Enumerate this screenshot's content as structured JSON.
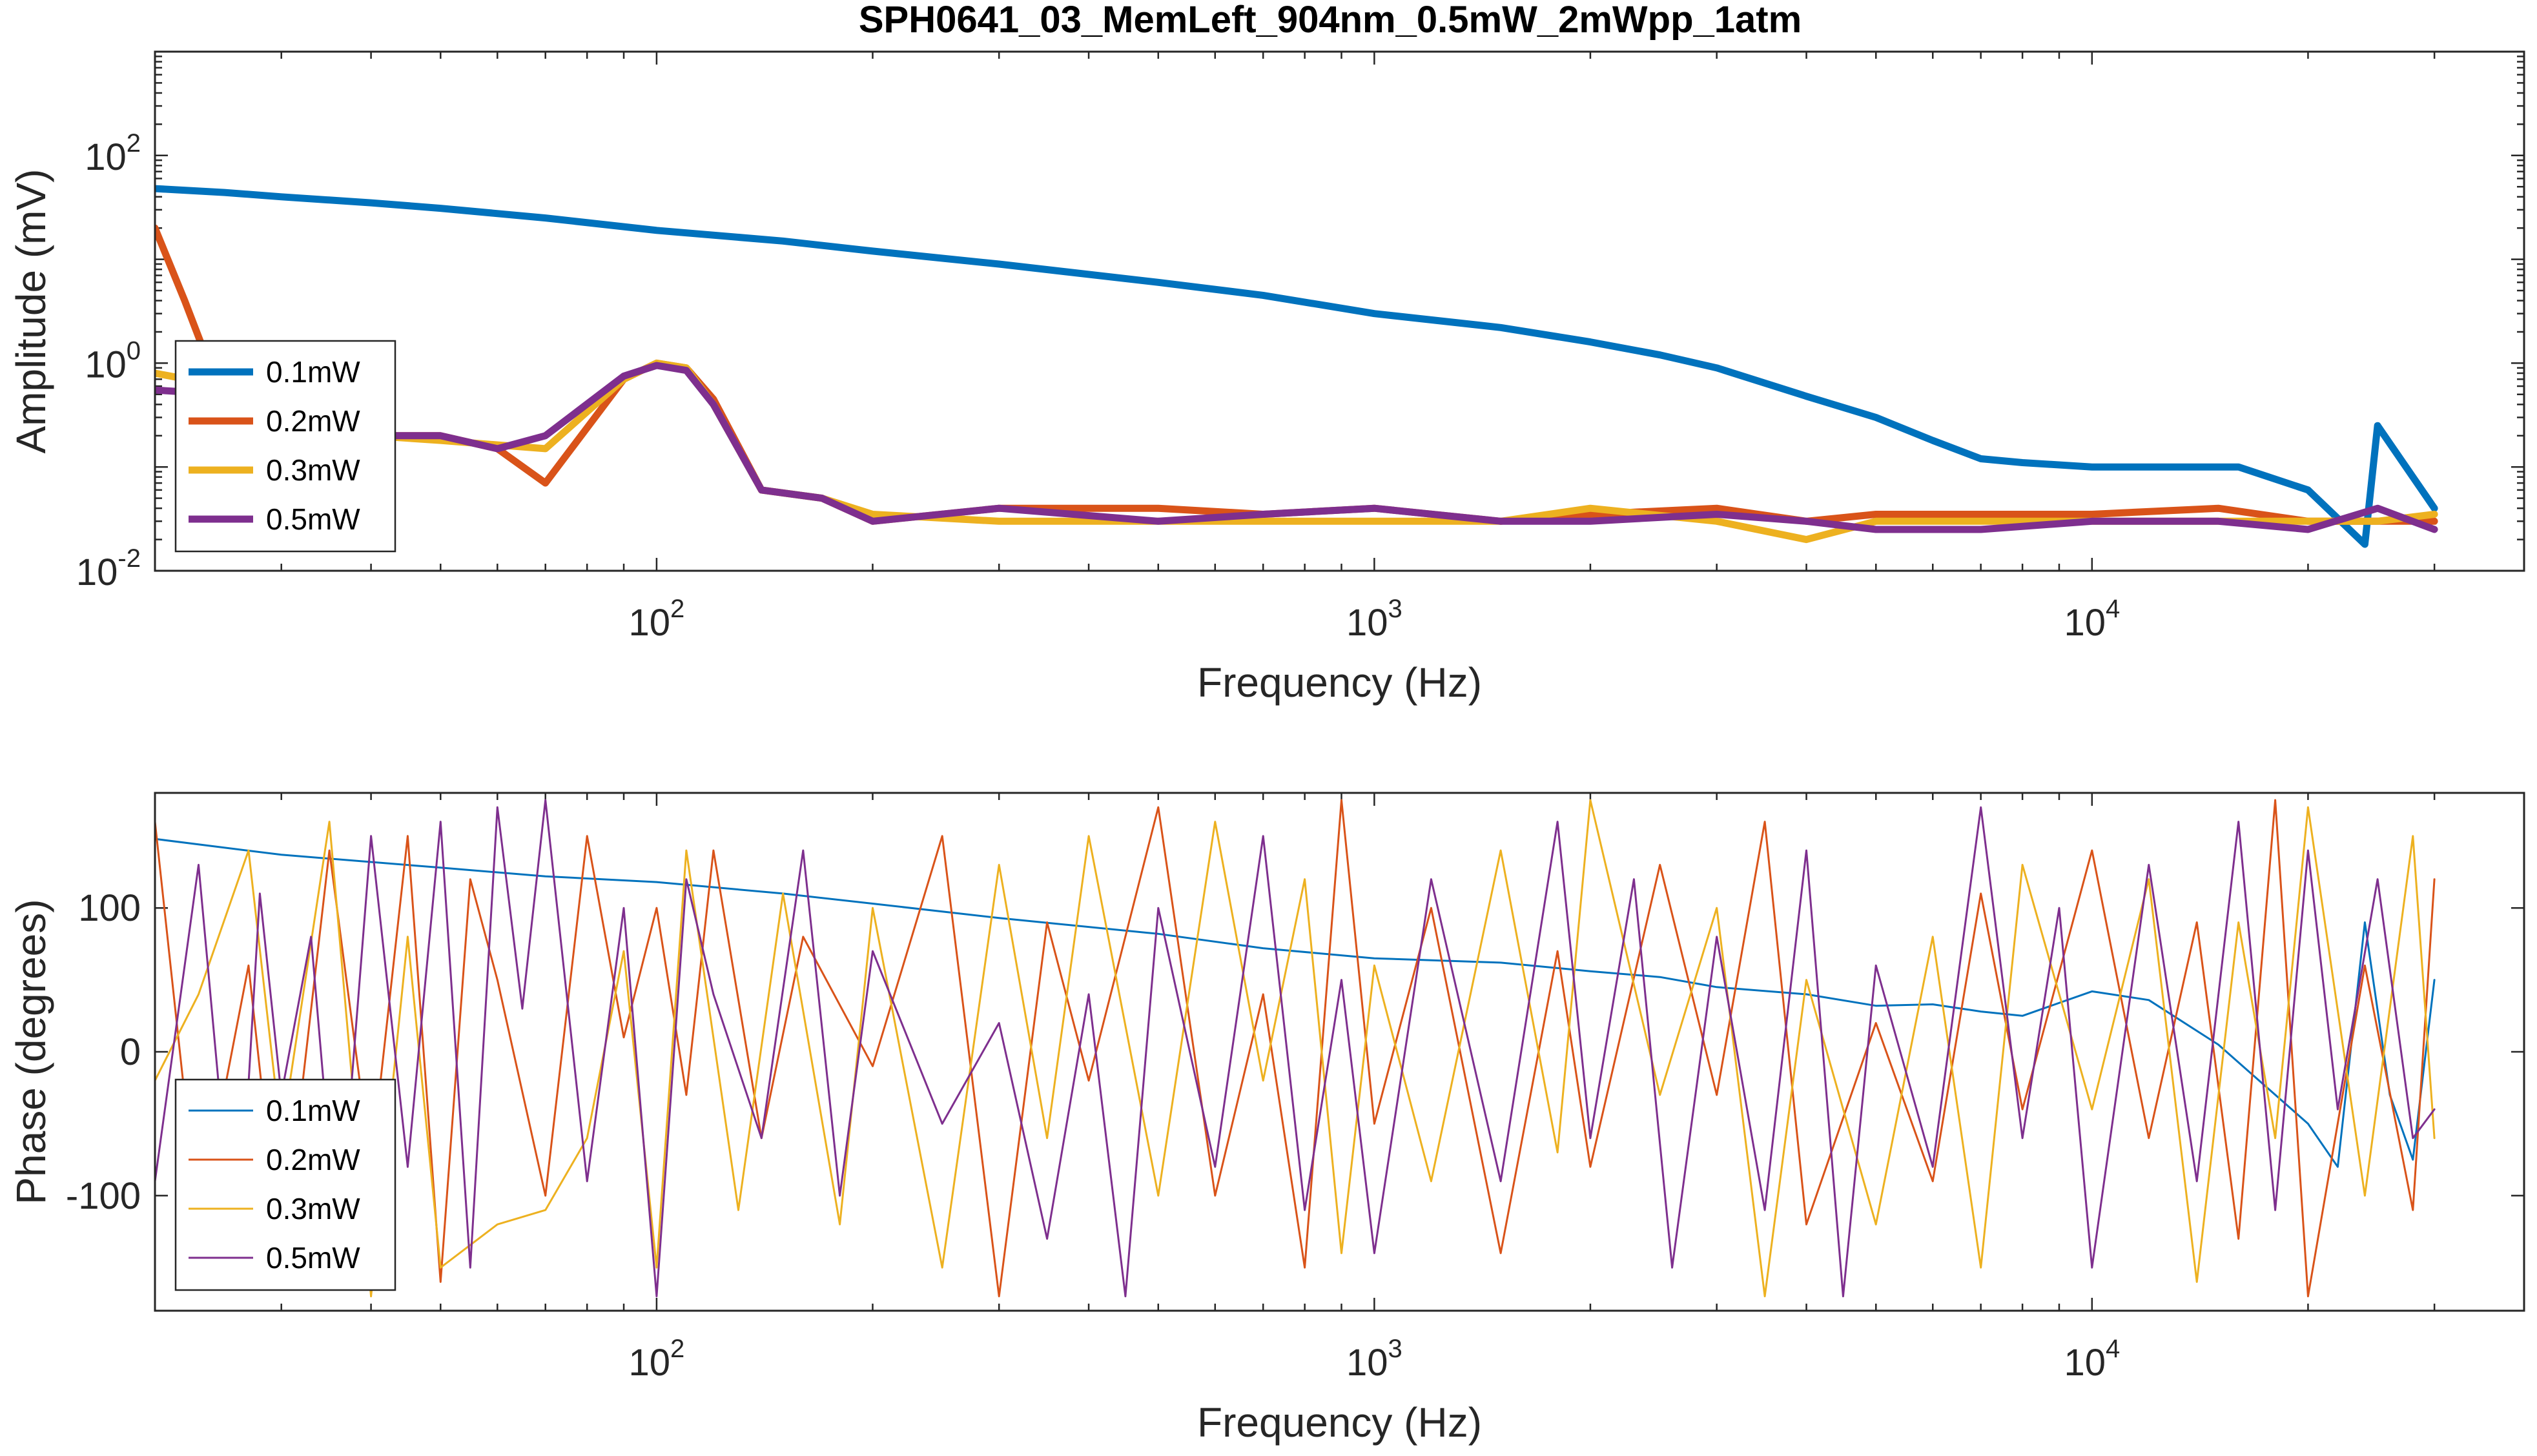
{
  "title": "SPH0641_03_MemLeft_904nm_0.5mW_2mWpp_1atm",
  "colors": {
    "0.1mW": "#0072BD",
    "0.2mW": "#D95319",
    "0.3mW": "#EDB120",
    "0.5mW": "#7E2F8E"
  },
  "chart_data": [
    {
      "type": "line",
      "xlabel": "Frequency (Hz)",
      "ylabel": "Amplitude (mV)",
      "xscale": "log",
      "yscale": "log",
      "xlim": [
        20,
        40000
      ],
      "ylim": [
        0.01,
        1000
      ],
      "xticks": [
        {
          "base": "10",
          "exp": "2",
          "value": 100
        },
        {
          "base": "10",
          "exp": "3",
          "value": 1000
        },
        {
          "base": "10",
          "exp": "4",
          "value": 10000
        }
      ],
      "yticks": [
        {
          "base": "10",
          "exp": "-2",
          "value": 0.01
        },
        {
          "base": "10",
          "exp": "0",
          "value": 1
        },
        {
          "base": "10",
          "exp": "2",
          "value": 100
        }
      ],
      "legend_position": "bottom-left",
      "line_style": "thick",
      "series": [
        {
          "name": "0.1mW",
          "x": [
            20,
            25,
            30,
            40,
            50,
            70,
            100,
            150,
            200,
            300,
            500,
            700,
            1000,
            1500,
            2000,
            2500,
            3000,
            4000,
            5000,
            6000,
            7000,
            8000,
            10000,
            13000,
            16000,
            20000,
            24000,
            25000,
            30000
          ],
          "y": [
            48,
            44,
            40,
            35,
            31,
            25,
            19,
            15,
            12,
            9,
            6,
            4.5,
            3,
            2.2,
            1.6,
            1.2,
            0.9,
            0.48,
            0.3,
            0.18,
            0.12,
            0.11,
            0.1,
            0.1,
            0.1,
            0.06,
            0.018,
            0.25,
            0.04
          ]
        },
        {
          "name": "0.2mW",
          "x": [
            20,
            22,
            25,
            30,
            40,
            50,
            60,
            70,
            90,
            100,
            110,
            120,
            140,
            170,
            200,
            300,
            500,
            700,
            1000,
            1500,
            2000,
            3000,
            4000,
            5000,
            7000,
            10000,
            15000,
            20000,
            25000,
            30000
          ],
          "y": [
            20,
            4,
            0.4,
            0.25,
            0.2,
            0.2,
            0.15,
            0.07,
            0.7,
            1.0,
            0.9,
            0.45,
            0.06,
            0.05,
            0.03,
            0.04,
            0.04,
            0.035,
            0.04,
            0.03,
            0.035,
            0.04,
            0.03,
            0.035,
            0.035,
            0.035,
            0.04,
            0.03,
            0.03,
            0.03
          ]
        },
        {
          "name": "0.3mW",
          "x": [
            20,
            25,
            30,
            40,
            50,
            70,
            90,
            100,
            110,
            120,
            140,
            170,
            200,
            300,
            500,
            700,
            1000,
            1500,
            2000,
            3000,
            4000,
            5000,
            7000,
            10000,
            15000,
            20000,
            25000,
            30000
          ],
          "y": [
            0.8,
            0.6,
            0.3,
            0.2,
            0.18,
            0.15,
            0.7,
            1.0,
            0.9,
            0.4,
            0.06,
            0.05,
            0.035,
            0.03,
            0.03,
            0.03,
            0.03,
            0.03,
            0.04,
            0.03,
            0.02,
            0.03,
            0.03,
            0.03,
            0.03,
            0.03,
            0.03,
            0.035
          ]
        },
        {
          "name": "0.5mW",
          "x": [
            20,
            25,
            30,
            40,
            50,
            60,
            70,
            90,
            100,
            110,
            120,
            140,
            170,
            200,
            300,
            500,
            700,
            1000,
            1500,
            2000,
            3000,
            4000,
            5000,
            7000,
            10000,
            15000,
            20000,
            25000,
            30000
          ],
          "y": [
            0.55,
            0.5,
            0.3,
            0.2,
            0.2,
            0.15,
            0.2,
            0.75,
            0.95,
            0.85,
            0.4,
            0.06,
            0.05,
            0.03,
            0.04,
            0.03,
            0.035,
            0.04,
            0.03,
            0.03,
            0.035,
            0.03,
            0.025,
            0.025,
            0.03,
            0.03,
            0.025,
            0.04,
            0.025
          ]
        }
      ]
    },
    {
      "type": "line",
      "xlabel": "Frequency (Hz)",
      "ylabel": "Phase (degrees)",
      "xscale": "log",
      "xlim": [
        20,
        40000
      ],
      "ylim": [
        -180,
        180
      ],
      "xticks": [
        {
          "base": "10",
          "exp": "2",
          "value": 100
        },
        {
          "base": "10",
          "exp": "3",
          "value": 1000
        },
        {
          "base": "10",
          "exp": "4",
          "value": 10000
        }
      ],
      "yticks": [
        {
          "label": "100",
          "value": 100
        },
        {
          "label": "0",
          "value": 0
        },
        {
          "label": "-100",
          "value": -100
        }
      ],
      "legend_position": "bottom-left",
      "line_style": "thin",
      "series": [
        {
          "name": "0.1mW",
          "x": [
            20,
            30,
            50,
            70,
            100,
            150,
            200,
            300,
            500,
            700,
            1000,
            1500,
            2000,
            2500,
            3000,
            4000,
            5000,
            6000,
            7000,
            8000,
            10000,
            12000,
            15000,
            20000,
            22000,
            24000,
            26000,
            28000,
            30000
          ],
          "y": [
            148,
            137,
            128,
            122,
            118,
            110,
            103,
            93,
            82,
            72,
            65,
            62,
            56,
            52,
            45,
            40,
            32,
            33,
            28,
            25,
            42,
            36,
            5,
            -50,
            -80,
            90,
            -30,
            -75,
            50
          ]
        },
        {
          "name": "0.2mW",
          "x": [
            20,
            23,
            27,
            30,
            35,
            40,
            45,
            50,
            55,
            60,
            70,
            80,
            90,
            100,
            110,
            120,
            140,
            160,
            200,
            250,
            300,
            350,
            400,
            500,
            600,
            700,
            800,
            900,
            1000,
            1200,
            1500,
            1800,
            2000,
            2500,
            3000,
            3500,
            4000,
            5000,
            6000,
            7000,
            8000,
            10000,
            12000,
            14000,
            16000,
            18000,
            20000,
            24000,
            28000,
            30000
          ],
          "y": [
            160,
            -120,
            60,
            -150,
            140,
            -80,
            150,
            -160,
            120,
            50,
            -100,
            150,
            10,
            100,
            -30,
            140,
            -60,
            80,
            -10,
            150,
            -170,
            90,
            -20,
            170,
            -100,
            40,
            -150,
            175,
            -50,
            100,
            -140,
            70,
            -80,
            130,
            -30,
            160,
            -120,
            20,
            -90,
            110,
            -40,
            140,
            -60,
            90,
            -130,
            175,
            -170,
            60,
            -110,
            120
          ]
        },
        {
          "name": "0.3mW",
          "x": [
            20,
            23,
            27,
            30,
            35,
            40,
            45,
            50,
            60,
            70,
            80,
            90,
            100,
            110,
            130,
            150,
            180,
            200,
            250,
            300,
            350,
            400,
            500,
            600,
            700,
            800,
            900,
            1000,
            1200,
            1500,
            1800,
            2000,
            2500,
            3000,
            3500,
            4000,
            5000,
            6000,
            7000,
            8000,
            10000,
            12000,
            14000,
            16000,
            18000,
            20000,
            24000,
            28000,
            30000
          ],
          "y": [
            -20,
            40,
            140,
            -60,
            160,
            -170,
            80,
            -150,
            -120,
            -110,
            -60,
            70,
            -150,
            140,
            -110,
            110,
            -120,
            100,
            -150,
            130,
            -60,
            150,
            -100,
            160,
            -20,
            120,
            -140,
            60,
            -90,
            140,
            -70,
            175,
            -30,
            100,
            -170,
            50,
            -120,
            80,
            -150,
            130,
            -40,
            120,
            -160,
            90,
            -60,
            170,
            -100,
            150,
            -60
          ]
        },
        {
          "name": "0.5mW",
          "x": [
            20,
            23,
            26,
            28,
            30,
            33,
            36,
            40,
            45,
            50,
            55,
            60,
            65,
            70,
            80,
            90,
            100,
            110,
            120,
            140,
            160,
            180,
            200,
            250,
            300,
            350,
            400,
            450,
            500,
            600,
            700,
            800,
            900,
            1000,
            1200,
            1500,
            1800,
            2000,
            2300,
            2600,
            3000,
            3500,
            4000,
            4500,
            5000,
            6000,
            7000,
            8000,
            9000,
            10000,
            12000,
            14000,
            16000,
            18000,
            20000,
            22000,
            25000,
            28000,
            30000
          ],
          "y": [
            -90,
            130,
            -160,
            110,
            -30,
            80,
            -140,
            150,
            -80,
            160,
            -150,
            170,
            30,
            175,
            -90,
            100,
            -170,
            120,
            40,
            -60,
            140,
            -100,
            70,
            -50,
            20,
            -130,
            40,
            -170,
            100,
            -80,
            150,
            -110,
            50,
            -140,
            120,
            -90,
            160,
            -60,
            120,
            -150,
            80,
            -110,
            140,
            -170,
            60,
            -80,
            170,
            -60,
            100,
            -150,
            130,
            -90,
            160,
            -110,
            140,
            -40,
            120,
            -60,
            -40
          ]
        }
      ]
    }
  ]
}
